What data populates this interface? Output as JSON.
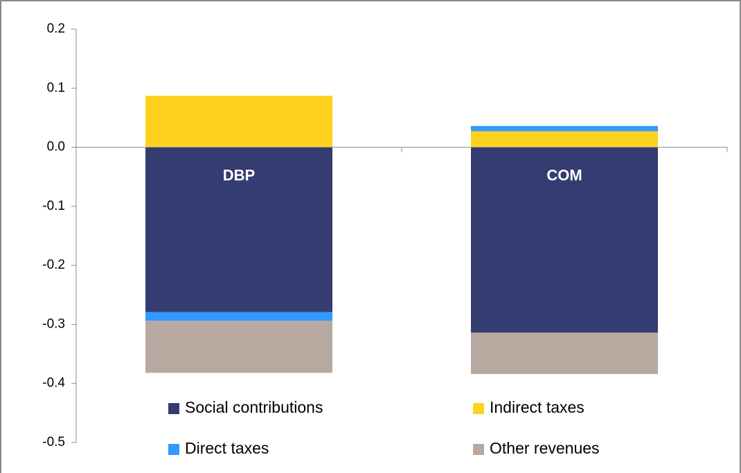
{
  "chart_data": {
    "type": "stacked_bar",
    "categories": [
      "DBP",
      "COM"
    ],
    "series": [
      {
        "name": "Social contributions",
        "color": "#353c72",
        "values": [
          -0.279,
          -0.314
        ]
      },
      {
        "name": "Indirect taxes",
        "color": "#fdd21f",
        "values": [
          0.087,
          0.027
        ]
      },
      {
        "name": "Direct taxes",
        "color": "#3399ff",
        "values": [
          -0.015,
          0.009
        ]
      },
      {
        "name": "Other revenues",
        "color": "#b8a9a0",
        "values": [
          -0.088,
          -0.07
        ]
      }
    ],
    "ylim": [
      -0.5,
      0.2
    ],
    "yticks": [
      0.2,
      0.1,
      {
        "value": 0,
        "label": "0.0"
      },
      -0.1,
      -0.2,
      -0.3,
      -0.4,
      -0.5
    ],
    "grid": false
  }
}
